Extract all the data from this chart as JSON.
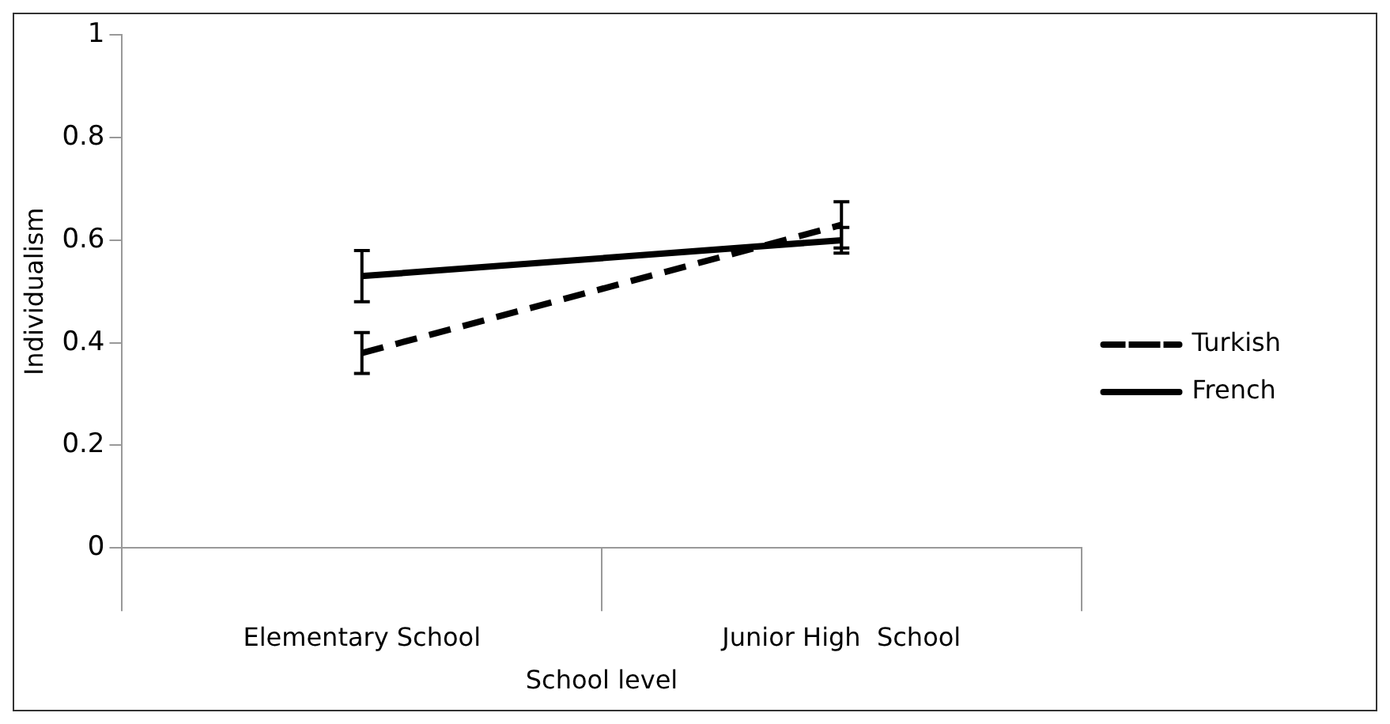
{
  "chart_data": {
    "type": "line",
    "xlabel": "School level",
    "ylabel": "Individualism",
    "categories": [
      "Elementary School",
      "Junior High  School"
    ],
    "series": [
      {
        "name": "Turkish",
        "color": "#000000",
        "line_style": "dashed",
        "values": [
          0.38,
          0.63
        ],
        "errors": [
          0.04,
          0.045
        ]
      },
      {
        "name": "French",
        "color": "#000000",
        "line_style": "solid",
        "values": [
          0.53,
          0.6
        ],
        "errors": [
          0.05,
          0.025
        ]
      }
    ],
    "ylim": [
      0,
      1
    ],
    "yticks": [
      0,
      0.2,
      0.4,
      0.6,
      0.8,
      1
    ],
    "grid": false,
    "legend": "right"
  }
}
